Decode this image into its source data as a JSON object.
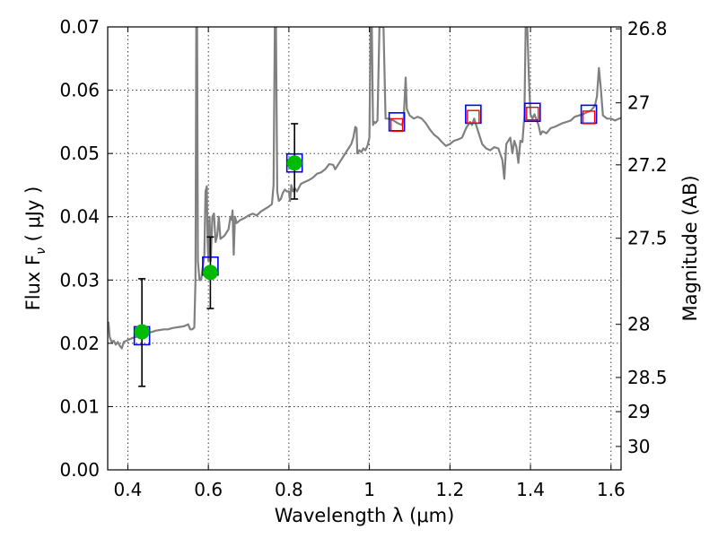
{
  "chart_data": {
    "type": "scatter",
    "xlabel": "Wavelength  λ (μm)",
    "ylabel": "Flux  F",
    "ylabel_sub": "ν",
    "ylabel_unit": "  ( μJy )",
    "y2label": "Magnitude (AB)",
    "xlim": [
      0.35,
      1.625
    ],
    "ylim": [
      0.0,
      0.07
    ],
    "grid": true,
    "x_ticks": [
      0.4,
      0.6,
      0.8,
      1.0,
      1.2,
      1.4,
      1.6
    ],
    "x_tick_labels": [
      "0.4",
      "0.6",
      "0.8",
      "1",
      "1.2",
      "1.4",
      "1.6"
    ],
    "y_ticks": [
      0.0,
      0.01,
      0.02,
      0.03,
      0.04,
      0.05,
      0.06,
      0.07
    ],
    "y_tick_labels": [
      "0.00",
      "0.01",
      "0.02",
      "0.03",
      "0.04",
      "0.05",
      "0.06",
      "0.07"
    ],
    "y2_ticks": [
      {
        "label": "26.8",
        "flux": 0.0697
      },
      {
        "label": "27",
        "flux": 0.058
      },
      {
        "label": "27.2",
        "flux": 0.0482
      },
      {
        "label": "27.5",
        "flux": 0.0366
      },
      {
        "label": "28",
        "flux": 0.023
      },
      {
        "label": "28.5",
        "flux": 0.0146
      },
      {
        "label": "29",
        "flux": 0.0092
      },
      {
        "label": "30",
        "flux": 0.0037
      }
    ],
    "series": [
      {
        "kind": "model_spectrum",
        "color": "#808080",
        "points": [
          [
            0.35,
            0.0228
          ],
          [
            0.352,
            0.0233
          ],
          [
            0.355,
            0.021
          ],
          [
            0.36,
            0.0202
          ],
          [
            0.365,
            0.0204
          ],
          [
            0.37,
            0.0198
          ],
          [
            0.375,
            0.0202
          ],
          [
            0.38,
            0.0196
          ],
          [
            0.385,
            0.0192
          ],
          [
            0.39,
            0.0202
          ],
          [
            0.4,
            0.0205
          ],
          [
            0.41,
            0.0208
          ],
          [
            0.42,
            0.021
          ],
          [
            0.43,
            0.0212
          ],
          [
            0.44,
            0.0215
          ],
          [
            0.45,
            0.0217
          ],
          [
            0.46,
            0.0218
          ],
          [
            0.47,
            0.022
          ],
          [
            0.48,
            0.0221
          ],
          [
            0.49,
            0.0222
          ],
          [
            0.5,
            0.0222
          ],
          [
            0.51,
            0.0224
          ],
          [
            0.52,
            0.0225
          ],
          [
            0.53,
            0.0226
          ],
          [
            0.54,
            0.0227
          ],
          [
            0.55,
            0.023
          ],
          [
            0.555,
            0.0222
          ],
          [
            0.56,
            0.0222
          ],
          [
            0.565,
            0.0225
          ],
          [
            0.568,
            0.03
          ],
          [
            0.57,
            0.07
          ],
          [
            0.572,
            0.07
          ],
          [
            0.574,
            0.033
          ],
          [
            0.578,
            0.03
          ],
          [
            0.582,
            0.03
          ],
          [
            0.586,
            0.032
          ],
          [
            0.59,
            0.034
          ],
          [
            0.593,
            0.044
          ],
          [
            0.596,
            0.0448
          ],
          [
            0.598,
            0.036
          ],
          [
            0.6,
            0.033
          ],
          [
            0.603,
            0.04
          ],
          [
            0.606,
            0.033
          ],
          [
            0.61,
            0.04
          ],
          [
            0.614,
            0.0405
          ],
          [
            0.618,
            0.036
          ],
          [
            0.622,
            0.037
          ],
          [
            0.626,
            0.04
          ],
          [
            0.63,
            0.0365
          ],
          [
            0.64,
            0.037
          ],
          [
            0.65,
            0.038
          ],
          [
            0.655,
            0.04
          ],
          [
            0.658,
            0.0395
          ],
          [
            0.66,
            0.041
          ],
          [
            0.663,
            0.034
          ],
          [
            0.666,
            0.04
          ],
          [
            0.67,
            0.039
          ],
          [
            0.68,
            0.0395
          ],
          [
            0.69,
            0.0398
          ],
          [
            0.7,
            0.0402
          ],
          [
            0.71,
            0.0405
          ],
          [
            0.72,
            0.0402
          ],
          [
            0.73,
            0.0408
          ],
          [
            0.74,
            0.0412
          ],
          [
            0.75,
            0.0416
          ],
          [
            0.758,
            0.042
          ],
          [
            0.762,
            0.045
          ],
          [
            0.765,
            0.07
          ],
          [
            0.768,
            0.07
          ],
          [
            0.771,
            0.044
          ],
          [
            0.775,
            0.0425
          ],
          [
            0.78,
            0.0428
          ],
          [
            0.785,
            0.0438
          ],
          [
            0.79,
            0.0443
          ],
          [
            0.795,
            0.044
          ],
          [
            0.8,
            0.044
          ],
          [
            0.803,
            0.0425
          ],
          [
            0.806,
            0.045
          ],
          [
            0.81,
            0.044
          ],
          [
            0.815,
            0.0445
          ],
          [
            0.82,
            0.044
          ],
          [
            0.83,
            0.0452
          ],
          [
            0.84,
            0.0455
          ],
          [
            0.85,
            0.0458
          ],
          [
            0.86,
            0.0462
          ],
          [
            0.87,
            0.0468
          ],
          [
            0.88,
            0.047
          ],
          [
            0.89,
            0.0475
          ],
          [
            0.9,
            0.0483
          ],
          [
            0.91,
            0.0482
          ],
          [
            0.915,
            0.0475
          ],
          [
            0.92,
            0.048
          ],
          [
            0.93,
            0.049
          ],
          [
            0.94,
            0.05
          ],
          [
            0.95,
            0.051
          ],
          [
            0.955,
            0.0515
          ],
          [
            0.96,
            0.0525
          ],
          [
            0.965,
            0.0542
          ],
          [
            0.968,
            0.054
          ],
          [
            0.97,
            0.05
          ],
          [
            0.975,
            0.0505
          ],
          [
            0.98,
            0.0502
          ],
          [
            0.985,
            0.0508
          ],
          [
            0.99,
            0.0505
          ],
          [
            0.995,
            0.0512
          ],
          [
            1.0,
            0.0525
          ],
          [
            1.003,
            0.07
          ],
          [
            1.006,
            0.07
          ],
          [
            1.009,
            0.0545
          ],
          [
            1.012,
            0.055
          ],
          [
            1.015,
            0.0548
          ],
          [
            1.02,
            0.0552
          ],
          [
            1.025,
            0.07
          ],
          [
            1.035,
            0.07
          ],
          [
            1.04,
            0.0555
          ],
          [
            1.05,
            0.0555
          ],
          [
            1.06,
            0.0552
          ],
          [
            1.07,
            0.0548
          ],
          [
            1.08,
            0.0545
          ],
          [
            1.085,
            0.0552
          ],
          [
            1.09,
            0.062
          ],
          [
            1.093,
            0.057
          ],
          [
            1.1,
            0.056
          ],
          [
            1.11,
            0.0555
          ],
          [
            1.12,
            0.0558
          ],
          [
            1.13,
            0.0555
          ],
          [
            1.14,
            0.0548
          ],
          [
            1.15,
            0.0538
          ],
          [
            1.16,
            0.053
          ],
          [
            1.17,
            0.0525
          ],
          [
            1.18,
            0.0518
          ],
          [
            1.19,
            0.0512
          ],
          [
            1.2,
            0.0515
          ],
          [
            1.21,
            0.052
          ],
          [
            1.22,
            0.0522
          ],
          [
            1.23,
            0.0525
          ],
          [
            1.24,
            0.054
          ],
          [
            1.25,
            0.055
          ],
          [
            1.255,
            0.0545
          ],
          [
            1.26,
            0.0555
          ],
          [
            1.27,
            0.0535
          ],
          [
            1.28,
            0.0515
          ],
          [
            1.29,
            0.0508
          ],
          [
            1.3,
            0.0505
          ],
          [
            1.31,
            0.051
          ],
          [
            1.32,
            0.0508
          ],
          [
            1.33,
            0.049
          ],
          [
            1.335,
            0.046
          ],
          [
            1.34,
            0.0515
          ],
          [
            1.345,
            0.052
          ],
          [
            1.35,
            0.0525
          ],
          [
            1.355,
            0.05
          ],
          [
            1.36,
            0.052
          ],
          [
            1.365,
            0.051
          ],
          [
            1.37,
            0.0485
          ],
          [
            1.375,
            0.052
          ],
          [
            1.38,
            0.0518
          ],
          [
            1.385,
            0.056
          ],
          [
            1.388,
            0.07
          ],
          [
            1.392,
            0.07
          ],
          [
            1.396,
            0.062
          ],
          [
            1.4,
            0.0562
          ],
          [
            1.405,
            0.0555
          ],
          [
            1.41,
            0.0562
          ],
          [
            1.42,
            0.0545
          ],
          [
            1.425,
            0.053
          ],
          [
            1.43,
            0.0535
          ],
          [
            1.44,
            0.0532
          ],
          [
            1.45,
            0.054
          ],
          [
            1.46,
            0.0542
          ],
          [
            1.47,
            0.0545
          ],
          [
            1.48,
            0.0548
          ],
          [
            1.49,
            0.055
          ],
          [
            1.5,
            0.0552
          ],
          [
            1.51,
            0.0558
          ],
          [
            1.52,
            0.056
          ],
          [
            1.53,
            0.0562
          ],
          [
            1.54,
            0.0565
          ],
          [
            1.55,
            0.0568
          ],
          [
            1.56,
            0.0575
          ],
          [
            1.565,
            0.059
          ],
          [
            1.57,
            0.0635
          ],
          [
            1.575,
            0.06
          ],
          [
            1.58,
            0.056
          ],
          [
            1.59,
            0.0555
          ],
          [
            1.6,
            0.0555
          ],
          [
            1.61,
            0.0552
          ],
          [
            1.62,
            0.0555
          ],
          [
            1.625,
            0.0556
          ]
        ]
      },
      {
        "kind": "model_photometry",
        "marker": "square",
        "color": "#0000ff",
        "points": [
          [
            0.435,
            0.0212
          ],
          [
            0.605,
            0.0322
          ],
          [
            0.814,
            0.0485
          ],
          [
            1.068,
            0.055
          ],
          [
            1.258,
            0.0562
          ],
          [
            1.405,
            0.0565
          ],
          [
            1.545,
            0.0562
          ]
        ]
      },
      {
        "kind": "observed_upper_limits",
        "marker": "square",
        "color": "#ff0000",
        "points": [
          [
            1.068,
            0.0545
          ],
          [
            1.258,
            0.0558
          ],
          [
            1.405,
            0.0563
          ],
          [
            1.545,
            0.0557
          ]
        ]
      },
      {
        "kind": "observed",
        "marker": "circle",
        "color": "#00bb00",
        "points": [
          {
            "x": 0.435,
            "y": 0.0218,
            "lo": 0.0132,
            "hi": 0.0302
          },
          {
            "x": 0.605,
            "y": 0.0312,
            "lo": 0.0255,
            "hi": 0.0368
          },
          {
            "x": 0.814,
            "y": 0.0485,
            "lo": 0.0428,
            "hi": 0.0547
          }
        ]
      }
    ]
  }
}
